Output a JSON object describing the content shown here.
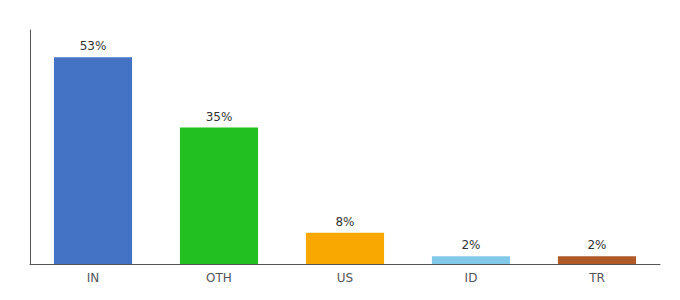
{
  "chart_data": {
    "type": "bar",
    "categories": [
      "IN",
      "OTH",
      "US",
      "ID",
      "TR"
    ],
    "values": [
      53,
      35,
      8,
      2,
      2
    ],
    "value_labels": [
      "53%",
      "35%",
      "8%",
      "2%",
      "2%"
    ],
    "colors": [
      "#4472C4",
      "#22C020",
      "#F8A800",
      "#82C8E8",
      "#B05A28"
    ],
    "ylim": [
      0,
      60
    ],
    "grid": false,
    "data_labels": true,
    "tick_labels": "x"
  }
}
